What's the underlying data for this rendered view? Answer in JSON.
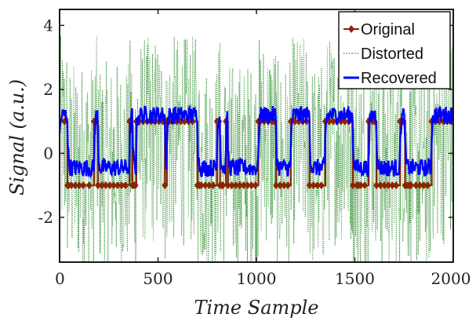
{
  "chart_data": {
    "type": "line",
    "xlabel": "Time Sample",
    "ylabel": "Signal (a.u.)",
    "xlim": [
      0,
      2000
    ],
    "ylim": [
      -3.4,
      4.5
    ],
    "xticks": [
      0,
      500,
      1000,
      1500,
      2000
    ],
    "yticks": [
      -2,
      0,
      2,
      4
    ],
    "xtick_labels": [
      "0",
      "500",
      "1000",
      "1500",
      "2000"
    ],
    "ytick_labels": [
      "-2",
      "0",
      "2",
      "4"
    ],
    "grid": false,
    "legend_position": "top-right",
    "series": [
      {
        "name": "Original",
        "color": "#8B2500",
        "style": "solid-with-diamond-markers",
        "x": [
          0,
          25,
          40,
          45,
          60,
          80,
          100,
          120,
          150,
          175,
          185,
          195,
          215,
          235,
          255,
          275,
          295,
          315,
          335,
          355,
          360,
          370,
          375,
          385,
          390,
          395,
          405,
          425,
          445,
          465,
          485,
          505,
          525,
          535,
          545,
          555,
          575,
          595,
          615,
          635,
          655,
          675,
          700,
          710,
          720,
          740,
          760,
          780,
          800,
          810,
          815,
          825,
          830,
          845,
          855,
          875,
          895,
          915,
          935,
          955,
          975,
          995,
          1010,
          1020,
          1040,
          1060,
          1080,
          1090,
          1100,
          1120,
          1140,
          1160,
          1175,
          1195,
          1215,
          1235,
          1255,
          1270,
          1290,
          1310,
          1330,
          1350,
          1370,
          1390,
          1410,
          1430,
          1450,
          1470,
          1490,
          1510,
          1520,
          1530,
          1550,
          1570,
          1590,
          1600,
          1610,
          1630,
          1650,
          1670,
          1690,
          1710,
          1730,
          1745,
          1755,
          1765,
          1775,
          1785,
          1810,
          1830,
          1850,
          1870,
          1890,
          1910,
          1930,
          1950,
          1970,
          1990
        ],
        "y": [
          1,
          1,
          -1,
          -1,
          -1,
          -1,
          -1,
          -1,
          -1,
          1,
          1,
          -1,
          -1,
          -1,
          -1,
          -1,
          -1,
          -1,
          -1,
          1,
          1,
          -1,
          -1,
          -1,
          1,
          1,
          1,
          1,
          1,
          1,
          1,
          1,
          1,
          -1,
          1,
          1,
          1,
          1,
          1,
          1,
          1,
          1,
          -1,
          -1,
          -1,
          -1,
          -1,
          -1,
          1,
          1,
          -1,
          -1,
          -1,
          1,
          -1,
          -1,
          -1,
          -1,
          -1,
          -1,
          -1,
          -1,
          1,
          1,
          1,
          1,
          1,
          1,
          -1,
          -1,
          -1,
          -1,
          1,
          1,
          1,
          1,
          1,
          -1,
          -1,
          -1,
          -1,
          1,
          1,
          1,
          1,
          1,
          1,
          1,
          -1,
          -1,
          -1,
          -1,
          -1,
          1,
          1,
          1,
          -1,
          -1,
          -1,
          -1,
          -1,
          -1,
          1,
          1,
          -1,
          -1,
          -1,
          -1,
          -1,
          -1,
          -1,
          -1,
          1,
          1,
          1,
          1,
          1,
          1
        ]
      },
      {
        "name": "Distorted",
        "color": "#2E8B2E",
        "style": "dotted",
        "amplitude": 3.3
      },
      {
        "name": "Recovered",
        "color": "#0000FF",
        "style": "solid",
        "high_level": 1.2,
        "low_level": -0.45
      }
    ]
  }
}
